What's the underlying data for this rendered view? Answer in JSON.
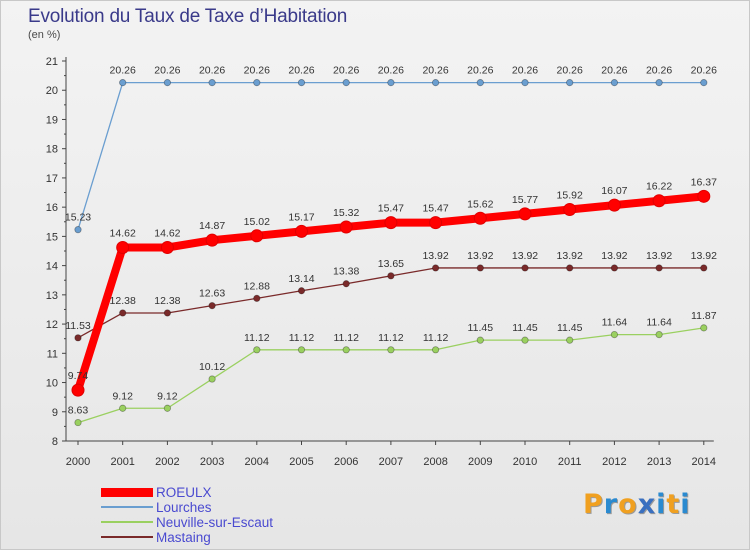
{
  "header": {
    "title": "Evolution du Taux de Taxe d’Habitation",
    "subtitle": "(en %)"
  },
  "logo": {
    "letters": [
      "P",
      "r",
      "o",
      "x",
      "i",
      "t",
      "i"
    ],
    "colors": [
      "#f0a020",
      "#2a8ad0",
      "#f0a020",
      "#3a70c0",
      "#2a8ad0",
      "#f0a020",
      "#2a8ad0"
    ]
  },
  "chart_data": {
    "type": "line",
    "title": "Evolution du Taux de Taxe d’Habitation",
    "subtitle": "(en %)",
    "x": [
      "2000",
      "2001",
      "2002",
      "2003",
      "2004",
      "2005",
      "2006",
      "2007",
      "2008",
      "2009",
      "2010",
      "2011",
      "2012",
      "2013",
      "2014"
    ],
    "ylim": [
      8,
      21
    ],
    "yticks": [
      "8",
      "9",
      "10",
      "11",
      "12",
      "13",
      "14",
      "15",
      "16",
      "17",
      "18",
      "19",
      "20",
      "21"
    ],
    "grid": false,
    "legend_position": "bottom-left",
    "series": [
      {
        "name": "ROEULX",
        "color": "#ff0000",
        "values": [
          9.74,
          14.62,
          14.62,
          14.87,
          15.02,
          15.17,
          15.32,
          15.47,
          15.47,
          15.62,
          15.77,
          15.92,
          16.07,
          16.22,
          16.37
        ],
        "labels": [
          "9.74",
          "14.62",
          "14.62",
          "14.87",
          "15.02",
          "15.17",
          "15.32",
          "15.47",
          "15.47",
          "15.62",
          "15.77",
          "15.92",
          "16.07",
          "16.22",
          "16.37"
        ]
      },
      {
        "name": "Lourches",
        "color": "#6a9ed0",
        "values": [
          15.23,
          20.26,
          20.26,
          20.26,
          20.26,
          20.26,
          20.26,
          20.26,
          20.26,
          20.26,
          20.26,
          20.26,
          20.26,
          20.26,
          20.26
        ],
        "labels": [
          "15.23",
          "20.26",
          "20.26",
          "20.26",
          "20.26",
          "20.26",
          "20.26",
          "20.26",
          "20.26",
          "20.26",
          "20.26",
          "20.26",
          "20.26",
          "20.26",
          "20.26"
        ]
      },
      {
        "name": "Neuville-sur-Escaut",
        "color": "#9ad060",
        "values": [
          8.63,
          9.12,
          9.12,
          10.12,
          11.12,
          11.12,
          11.12,
          11.12,
          11.12,
          11.45,
          11.45,
          11.45,
          11.64,
          11.64,
          11.87
        ],
        "labels": [
          "8.63",
          "9.12",
          "9.12",
          "10.12",
          "11.12",
          "11.12",
          "11.12",
          "11.12",
          "11.12",
          "11.45",
          "11.45",
          "11.45",
          "11.64",
          "11.64",
          "11.87"
        ]
      },
      {
        "name": "Mastaing",
        "color": "#7a2a2a",
        "values": [
          11.53,
          12.38,
          12.38,
          12.63,
          12.88,
          13.14,
          13.38,
          13.65,
          13.92,
          13.92,
          13.92,
          13.92,
          13.92,
          13.92,
          13.92
        ],
        "labels": [
          "11.53",
          "12.38",
          "12.38",
          "12.63",
          "12.88",
          "13.14",
          "13.38",
          "13.65",
          "13.92",
          "13.92",
          "13.92",
          "13.92",
          "13.92",
          "13.92",
          "13.92"
        ]
      }
    ]
  }
}
